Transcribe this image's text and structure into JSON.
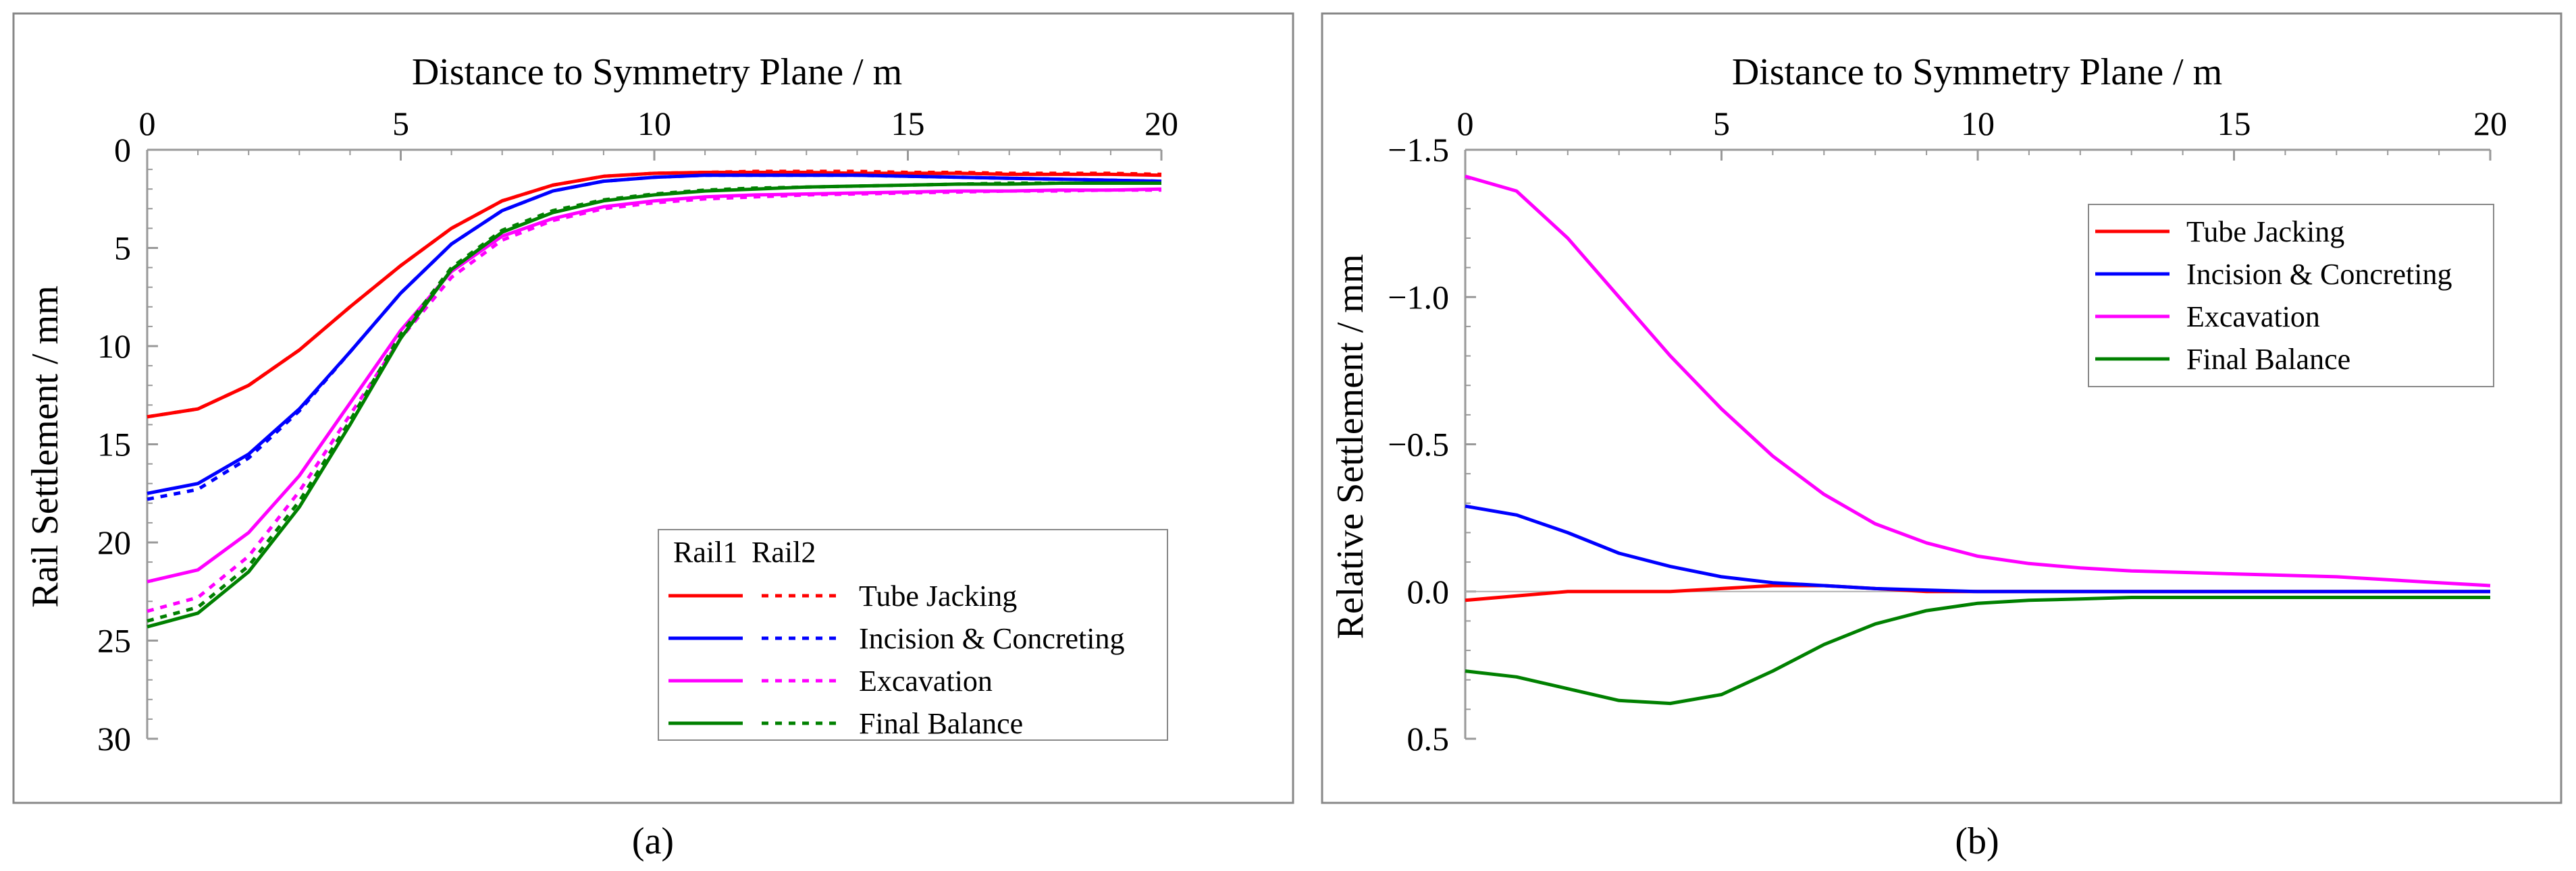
{
  "figure": {
    "captions": [
      "(a)",
      "(b)"
    ]
  },
  "chart_data": [
    {
      "type": "line",
      "panel": "(a)",
      "xlabel": "Distance to Symmetry Plane / m",
      "ylabel": "Rail Settlement / mm",
      "xlim": [
        0,
        20
      ],
      "ylim": [
        0,
        30
      ],
      "y_inverted": true,
      "xticks": [
        0,
        5,
        10,
        15,
        20
      ],
      "yticks": [
        0,
        5,
        10,
        15,
        20,
        25,
        30
      ],
      "xtick_labels": [
        "0",
        "5",
        "10",
        "15",
        "20"
      ],
      "ytick_labels": [
        "0",
        "5",
        "10",
        "15",
        "20",
        "25",
        "30"
      ],
      "legend": {
        "position": "bottom-right",
        "header": [
          "Rail1",
          "Rail2"
        ],
        "entries": [
          "Tube Jacking",
          "Incision & Concreting",
          "Excavation",
          "Final Balance"
        ]
      },
      "x": [
        0,
        1,
        2,
        3,
        4,
        5,
        6,
        7,
        8,
        9,
        10,
        11,
        12,
        13,
        14,
        15,
        16,
        17,
        18,
        19,
        20
      ],
      "series": [
        {
          "name": "Tube Jacking (Rail1)",
          "rail": "Rail1",
          "color": "#ff0000",
          "dash": "solid",
          "values": [
            13.6,
            13.2,
            12.0,
            10.2,
            8.0,
            5.9,
            4.0,
            2.6,
            1.8,
            1.35,
            1.2,
            1.15,
            1.15,
            1.15,
            1.2,
            1.2,
            1.2,
            1.25,
            1.25,
            1.25,
            1.3
          ]
        },
        {
          "name": "Tube Jacking (Rail2)",
          "rail": "Rail2",
          "color": "#ff0000",
          "dash": "dashed",
          "values": [
            13.6,
            13.2,
            12.0,
            10.2,
            8.0,
            5.9,
            4.0,
            2.6,
            1.8,
            1.35,
            1.2,
            1.15,
            1.1,
            1.1,
            1.1,
            1.15,
            1.15,
            1.2,
            1.2,
            1.2,
            1.25
          ]
        },
        {
          "name": "Incision & Concreting (Rail1)",
          "rail": "Rail1",
          "color": "#0000ff",
          "dash": "solid",
          "values": [
            17.5,
            17.0,
            15.5,
            13.2,
            10.3,
            7.3,
            4.8,
            3.1,
            2.1,
            1.6,
            1.4,
            1.3,
            1.3,
            1.3,
            1.3,
            1.35,
            1.4,
            1.45,
            1.5,
            1.55,
            1.6
          ]
        },
        {
          "name": "Incision & Concreting (Rail2)",
          "rail": "Rail2",
          "color": "#0000ff",
          "dash": "dashed",
          "values": [
            17.8,
            17.3,
            15.7,
            13.3,
            10.3,
            7.3,
            4.8,
            3.1,
            2.1,
            1.6,
            1.4,
            1.3,
            1.3,
            1.3,
            1.3,
            1.35,
            1.4,
            1.45,
            1.5,
            1.55,
            1.6
          ]
        },
        {
          "name": "Excavation (Rail1)",
          "rail": "Rail1",
          "color": "#ff00ff",
          "dash": "solid",
          "values": [
            22.0,
            21.4,
            19.5,
            16.6,
            12.9,
            9.2,
            6.2,
            4.4,
            3.5,
            2.9,
            2.6,
            2.4,
            2.3,
            2.25,
            2.2,
            2.15,
            2.1,
            2.1,
            2.05,
            2.05,
            2.0
          ]
        },
        {
          "name": "Excavation (Rail2)",
          "rail": "Rail2",
          "color": "#ff00ff",
          "dash": "dashed",
          "values": [
            23.5,
            22.8,
            20.7,
            17.4,
            13.5,
            9.6,
            6.5,
            4.6,
            3.6,
            3.0,
            2.7,
            2.5,
            2.4,
            2.3,
            2.25,
            2.2,
            2.15,
            2.1,
            2.1,
            2.05,
            2.05
          ]
        },
        {
          "name": "Final Balance (Rail1)",
          "rail": "Rail1",
          "color": "#008000",
          "dash": "solid",
          "values": [
            24.3,
            23.6,
            21.5,
            18.2,
            14.0,
            9.6,
            6.1,
            4.2,
            3.2,
            2.6,
            2.3,
            2.1,
            2.0,
            1.9,
            1.85,
            1.8,
            1.75,
            1.75,
            1.7,
            1.7,
            1.7
          ]
        },
        {
          "name": "Final Balance (Rail2)",
          "rail": "Rail2",
          "color": "#008000",
          "dash": "dashed",
          "values": [
            24.0,
            23.3,
            21.2,
            17.9,
            13.8,
            9.4,
            6.0,
            4.1,
            3.1,
            2.55,
            2.25,
            2.05,
            1.95,
            1.9,
            1.85,
            1.8,
            1.75,
            1.7,
            1.7,
            1.7,
            1.7
          ]
        }
      ]
    },
    {
      "type": "line",
      "panel": "(b)",
      "xlabel": "Distance to Symmetry Plane / m",
      "ylabel": "Relative Settlement / mm",
      "xlim": [
        0,
        20
      ],
      "ylim": [
        -1.5,
        0.5
      ],
      "y_inverted": true,
      "xticks": [
        0,
        5,
        10,
        15,
        20
      ],
      "yticks": [
        -1.5,
        -1.0,
        -0.5,
        0.0,
        0.5
      ],
      "xtick_labels": [
        "0",
        "5",
        "10",
        "15",
        "20"
      ],
      "ytick_labels": [
        "−1.5",
        "−1.0",
        "−0.5",
        "0.0",
        "0.5"
      ],
      "zero_line": true,
      "legend": {
        "position": "top-right",
        "entries": [
          "Tube Jacking",
          "Incision & Concreting",
          "Excavation",
          "Final Balance"
        ]
      },
      "x": [
        0,
        1,
        2,
        3,
        4,
        5,
        6,
        7,
        8,
        9,
        10,
        11,
        12,
        13,
        14,
        15,
        16,
        17,
        18,
        19,
        20
      ],
      "series": [
        {
          "name": "Tube Jacking",
          "color": "#ff0000",
          "dash": "solid",
          "values": [
            0.03,
            0.015,
            0.0,
            0.0,
            0.0,
            -0.01,
            -0.02,
            -0.02,
            -0.01,
            0.0,
            0.0,
            0.0,
            0.0,
            0.0,
            0.0,
            0.0,
            0.0,
            0.0,
            0.0,
            0.0,
            0.0
          ]
        },
        {
          "name": "Incision & Concreting",
          "color": "#0000ff",
          "dash": "solid",
          "values": [
            -0.29,
            -0.26,
            -0.2,
            -0.13,
            -0.085,
            -0.05,
            -0.03,
            -0.02,
            -0.01,
            -0.005,
            0.0,
            0.0,
            0.0,
            0.0,
            0.0,
            0.0,
            0.0,
            0.0,
            0.0,
            0.0,
            0.0
          ]
        },
        {
          "name": "Excavation",
          "color": "#ff00ff",
          "dash": "solid",
          "values": [
            -1.41,
            -1.36,
            -1.2,
            -1.0,
            -0.8,
            -0.62,
            -0.46,
            -0.33,
            -0.23,
            -0.165,
            -0.12,
            -0.095,
            -0.08,
            -0.07,
            -0.065,
            -0.06,
            -0.055,
            -0.05,
            -0.04,
            -0.03,
            -0.02
          ]
        },
        {
          "name": "Final Balance",
          "color": "#008000",
          "dash": "solid",
          "values": [
            0.27,
            0.29,
            0.33,
            0.37,
            0.38,
            0.35,
            0.27,
            0.18,
            0.11,
            0.065,
            0.04,
            0.03,
            0.025,
            0.02,
            0.02,
            0.02,
            0.02,
            0.02,
            0.02,
            0.02,
            0.02
          ]
        }
      ]
    }
  ]
}
